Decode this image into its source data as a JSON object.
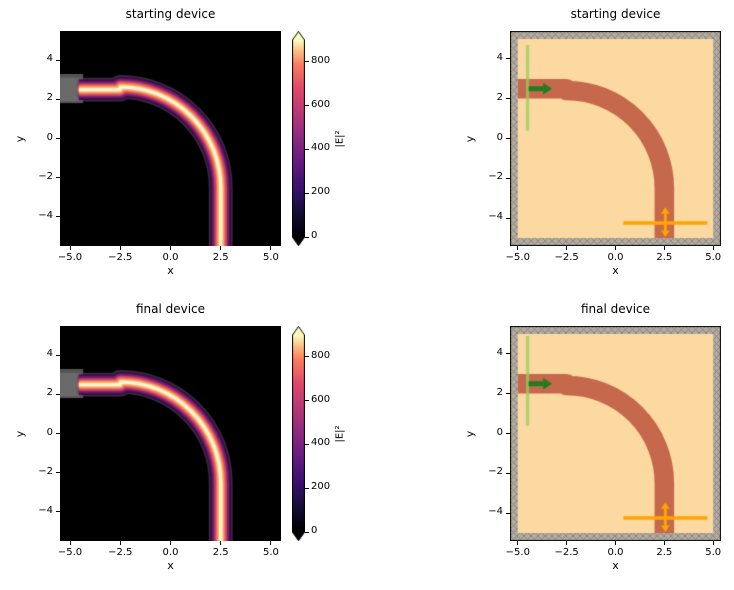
{
  "figure": {
    "background": "#ffffff"
  },
  "chart_data": [
    {
      "id": "field-starting",
      "variant": "starting",
      "type": "heatmap",
      "title": "starting device",
      "xlabel": "x",
      "ylabel": "y",
      "xlim": [
        -5.5,
        5.5
      ],
      "ylim": [
        -5.5,
        5.5
      ],
      "xticks": [
        -5.0,
        -2.5,
        0.0,
        2.5,
        5.0
      ],
      "xtick_labels": [
        "−5.0",
        "−2.5",
        "0.0",
        "2.5",
        "5.0"
      ],
      "yticks": [
        -4,
        -2,
        0,
        2,
        4
      ],
      "ytick_labels": [
        "−4",
        "−2",
        "0",
        "2",
        "4"
      ],
      "colormap": "magma",
      "background": "#000000",
      "colorbar": {
        "label": "|E|²",
        "ticks": [
          0,
          200,
          400,
          600,
          800
        ],
        "tick_labels": [
          "0",
          "200",
          "400",
          "600",
          "800"
        ],
        "vmin": 0,
        "vmax": 900,
        "extend": "both"
      },
      "geometry": {
        "waveguide": {
          "width": 1.0,
          "input_y": 2.5,
          "output_x": 2.5,
          "bend_radius": 5.0,
          "bend_center": [
            -2.5,
            -2.5
          ]
        },
        "source_block": {
          "x": [
            -5.5,
            -4.35
          ],
          "y": [
            1.85,
            3.3
          ],
          "color": "rgba(140,140,140,0.6)"
        }
      }
    },
    {
      "id": "structure-starting",
      "variant": "starting",
      "type": "structure",
      "title": "starting device",
      "xlabel": "x",
      "ylabel": "y",
      "xlim": [
        -5.4,
        5.4
      ],
      "ylim": [
        -5.4,
        5.4
      ],
      "xticks": [
        -5.0,
        -2.5,
        0.0,
        2.5,
        5.0
      ],
      "xtick_labels": [
        "−5.0",
        "−2.5",
        "0.0",
        "2.5",
        "5.0"
      ],
      "yticks": [
        -4,
        -2,
        0,
        2,
        4
      ],
      "ytick_labels": [
        "−4",
        "−2",
        "0",
        "2",
        "4"
      ],
      "background": "#fcd9a0",
      "pml": {
        "thickness": 0.4,
        "fill": "#b2aba1",
        "hatch": "#8d867c"
      },
      "waveguide_color": "rgba(187,84,60,0.85)",
      "geometry": {
        "waveguide": {
          "width": 1.0,
          "input_y": 2.5,
          "output_x": 2.5,
          "bend_radius": 5.0,
          "bend_center": [
            -2.5,
            -2.5
          ]
        }
      },
      "source_line": {
        "x": -4.5,
        "y": [
          0.4,
          4.7
        ],
        "color": "rgba(150,205,95,0.75)"
      },
      "source_arrow": {
        "x": [
          -4.45,
          -3.25
        ],
        "y": 2.5,
        "color": "#1e7d1e"
      },
      "monitor_line": {
        "y": -4.25,
        "x": [
          0.4,
          4.7
        ],
        "color": "#ffa500"
      },
      "monitor_arrow": {
        "x": 2.55,
        "y": [
          -4.95,
          -3.45
        ],
        "color": "#ffa500"
      }
    },
    {
      "id": "field-final",
      "variant": "final",
      "type": "heatmap",
      "title": "final device",
      "xlabel": "x",
      "ylabel": "y",
      "xlim": [
        -5.5,
        5.5
      ],
      "ylim": [
        -5.5,
        5.5
      ],
      "xticks": [
        -5.0,
        -2.5,
        0.0,
        2.5,
        5.0
      ],
      "xtick_labels": [
        "−5.0",
        "−2.5",
        "0.0",
        "2.5",
        "5.0"
      ],
      "yticks": [
        -4,
        -2,
        0,
        2,
        4
      ],
      "ytick_labels": [
        "−4",
        "−2",
        "0",
        "2",
        "4"
      ],
      "colormap": "magma",
      "background": "#000000",
      "colorbar": {
        "label": "|E|²",
        "ticks": [
          0,
          200,
          400,
          600,
          800
        ],
        "tick_labels": [
          "0",
          "200",
          "400",
          "600",
          "800"
        ],
        "vmin": 0,
        "vmax": 900,
        "extend": "both"
      },
      "geometry": {
        "waveguide": {
          "width": 1.0,
          "input_y": 2.5,
          "output_x": 2.5,
          "bend_radius": 5.0,
          "bend_center": [
            -2.5,
            -2.5
          ]
        },
        "source_block": {
          "x": [
            -5.5,
            -4.35
          ],
          "y": [
            1.85,
            3.3
          ],
          "color": "rgba(140,140,140,0.6)"
        }
      }
    },
    {
      "id": "structure-final",
      "variant": "final",
      "type": "structure",
      "title": "final device",
      "xlabel": "x",
      "ylabel": "y",
      "xlim": [
        -5.4,
        5.4
      ],
      "ylim": [
        -5.4,
        5.4
      ],
      "xticks": [
        -5.0,
        -2.5,
        0.0,
        2.5,
        5.0
      ],
      "xtick_labels": [
        "−5.0",
        "−2.5",
        "0.0",
        "2.5",
        "5.0"
      ],
      "yticks": [
        -4,
        -2,
        0,
        2,
        4
      ],
      "ytick_labels": [
        "−4",
        "−2",
        "0",
        "2",
        "4"
      ],
      "background": "#fcd9a0",
      "pml": {
        "thickness": 0.4,
        "fill": "#b2aba1",
        "hatch": "#8d867c"
      },
      "waveguide_color": "rgba(187,84,60,0.85)",
      "geometry": {
        "waveguide": {
          "width": 1.0,
          "input_y": 2.5,
          "output_x": 2.5,
          "bend_radius": 5.0,
          "bend_center": [
            -2.5,
            -2.5
          ]
        }
      },
      "source_line": {
        "x": -4.5,
        "y": [
          0.4,
          4.9
        ],
        "color": "rgba(150,205,95,0.75)"
      },
      "source_arrow": {
        "x": [
          -4.45,
          -3.25
        ],
        "y": 2.5,
        "color": "#1e7d1e"
      },
      "monitor_line": {
        "y": -4.25,
        "x": [
          0.4,
          4.7
        ],
        "color": "#ffa500"
      },
      "monitor_arrow": {
        "x": 2.55,
        "y": [
          -4.95,
          -3.45
        ],
        "color": "#ffa500"
      }
    }
  ]
}
